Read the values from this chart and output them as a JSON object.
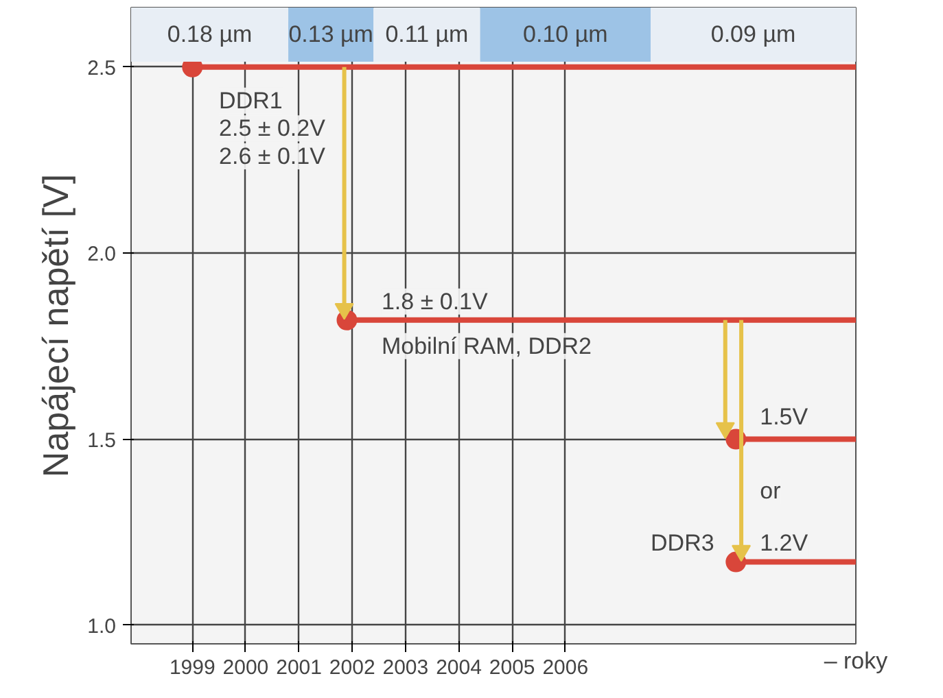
{
  "chart_data": {
    "type": "line",
    "ylabel": "Napájecí napětí [V]",
    "xlabel": "– roky",
    "xlim": [
      1997.85,
      2011.45
    ],
    "xticks": [
      1999,
      2000,
      2001,
      2002,
      2003,
      2004,
      2005,
      2006
    ],
    "ylim": [
      0.95,
      2.66
    ],
    "yticks": [
      {
        "value": 1.0,
        "label": "1.0"
      },
      1.5,
      {
        "value": 2.0,
        "label": "2.0"
      },
      2.5
    ],
    "grid": true,
    "line_style": "solid",
    "series": [
      {
        "color": "#d9463a",
        "x": [
          1999,
          2011.45
        ],
        "values": [
          2.5,
          2.5
        ],
        "marker": "circle"
      },
      {
        "color": "#d9463a",
        "x": [
          2001.9,
          2011.45
        ],
        "values": [
          1.82,
          1.82
        ],
        "marker": "circle"
      },
      {
        "color": "#d9463a",
        "x": [
          2009.2,
          2011.45
        ],
        "values": [
          1.5,
          1.5
        ],
        "marker": "circle"
      },
      {
        "color": "#d9463a",
        "x": [
          2009.2,
          2011.45
        ],
        "values": [
          1.17,
          1.17
        ],
        "marker": "circle"
      },
      {
        "color": "#e6c24a",
        "x": [
          2001.85,
          2001.85
        ],
        "values": [
          2.5,
          1.85
        ],
        "marker": "triangle"
      },
      {
        "color": "#e6c24a",
        "x": [
          2009.0,
          2009.0
        ],
        "values": [
          1.82,
          1.53
        ],
        "marker": "triangle"
      },
      {
        "color": "#e6c24a",
        "x": [
          2009.3,
          2009.3
        ],
        "values": [
          1.82,
          1.2
        ],
        "marker": "triangle"
      }
    ],
    "bands": [
      {
        "axis": "x",
        "from": 1997.85,
        "to": 2000.8,
        "label": "0.18 µm",
        "color": "#e8eef5"
      },
      {
        "axis": "x",
        "from": 2000.8,
        "to": 2002.4,
        "label": "0.13 µm",
        "color": "#9dc3e6"
      },
      {
        "axis": "x",
        "from": 2002.4,
        "to": 2004.4,
        "label": "0.11 µm",
        "color": "#e8eef5"
      },
      {
        "axis": "x",
        "from": 2004.4,
        "to": 2007.6,
        "label": "0.10 µm",
        "color": "#9dc3e6"
      },
      {
        "axis": "x",
        "from": 2007.6,
        "to": 2011.45,
        "label": "0.09 µm",
        "color": "#e8eef5"
      }
    ],
    "annotations": [
      "DDR1",
      "2.5 ± 0.2V",
      "2.6 ± 0.1V",
      "1.8 ± 0.1V",
      "Mobilní RAM, DDR2",
      "1.5V",
      "or",
      "DDR3",
      "1.2V"
    ]
  }
}
